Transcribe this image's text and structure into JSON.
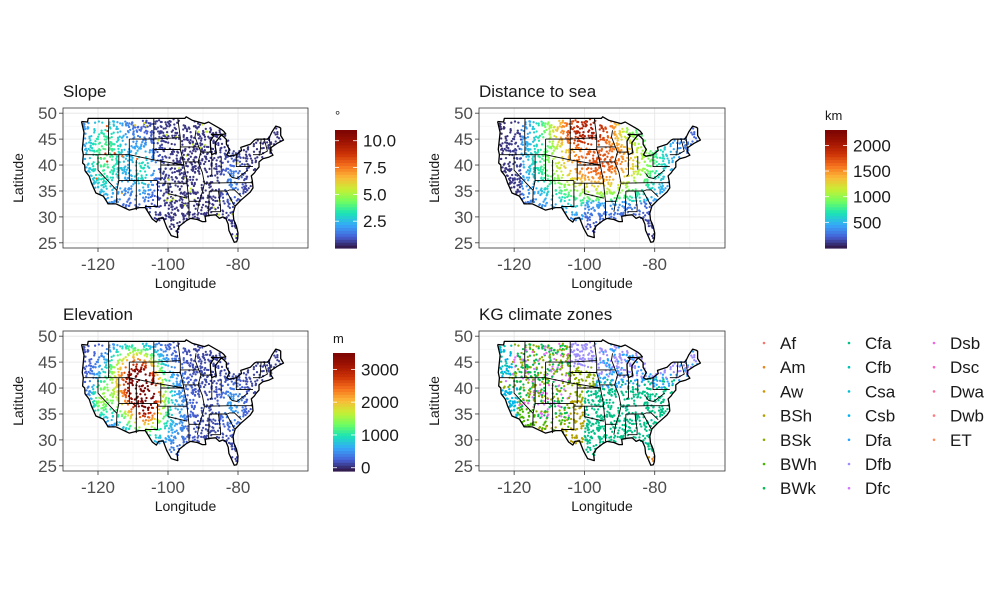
{
  "figure": {
    "axis_x_label": "Longitude",
    "axis_y_label": "Latitude"
  },
  "chart_data": [
    {
      "type": "scatter",
      "title": "Slope",
      "xlabel": "Longitude",
      "ylabel": "Latitude",
      "xlim": [
        -130,
        -60
      ],
      "ylim": [
        24,
        51
      ],
      "xticks": [
        -120,
        -100,
        -80
      ],
      "xtick_labels": [
        "-120",
        "-100",
        "-80"
      ],
      "yticks": [
        25,
        30,
        35,
        40,
        45,
        50
      ],
      "ytick_labels": [
        "25",
        "30",
        "35",
        "40",
        "45",
        "50"
      ],
      "grid": true,
      "legend": {
        "type": "colorbar",
        "title": "°",
        "range": [
          0,
          11
        ],
        "ticks": [
          2.5,
          5.0,
          7.5,
          10.0
        ],
        "tick_labels": [
          "2.5",
          "5.0",
          "7.5",
          "10.0"
        ],
        "colormap": "turbo",
        "placement": "right"
      },
      "pattern": "slope",
      "points": "dense random sample of sites across the contiguous United States; mostly low slope (<2°) with higher slopes along the western mountains and the Appalachians"
    },
    {
      "type": "scatter",
      "title": "Distance to sea",
      "xlabel": "Longitude",
      "ylabel": "Latitude",
      "xlim": [
        -130,
        -60
      ],
      "ylim": [
        24,
        51
      ],
      "xticks": [
        -120,
        -100,
        -80
      ],
      "xtick_labels": [
        "-120",
        "-100",
        "-80"
      ],
      "yticks": [
        25,
        30,
        35,
        40,
        45,
        50
      ],
      "ytick_labels": [
        "25",
        "30",
        "35",
        "40",
        "45",
        "50"
      ],
      "grid": true,
      "legend": {
        "type": "colorbar",
        "title": "km",
        "range": [
          0,
          2300
        ],
        "ticks": [
          500,
          1000,
          1500,
          2000
        ],
        "tick_labels": [
          "500",
          "1000",
          "1500",
          "2000"
        ],
        "colormap": "turbo",
        "placement": "right"
      },
      "pattern": "distance",
      "points": "distance from coast in km; maximum (~2200 km) over the northern Great Plains, low near all coasts"
    },
    {
      "type": "scatter",
      "title": "Elevation",
      "xlabel": "Longitude",
      "ylabel": "Latitude",
      "xlim": [
        -130,
        -60
      ],
      "ylim": [
        24,
        51
      ],
      "xticks": [
        -120,
        -100,
        -80
      ],
      "xtick_labels": [
        "-120",
        "-100",
        "-80"
      ],
      "yticks": [
        25,
        30,
        35,
        40,
        45,
        50
      ],
      "ytick_labels": [
        "25",
        "30",
        "35",
        "40",
        "45",
        "50"
      ],
      "grid": true,
      "legend": {
        "type": "colorbar",
        "title": "m",
        "range": [
          -100,
          3500
        ],
        "ticks": [
          0,
          1000,
          2000,
          3000
        ],
        "tick_labels": [
          "0",
          "1000",
          "2000",
          "3000"
        ],
        "colormap": "turbo",
        "placement": "right"
      },
      "pattern": "elevation",
      "points": "elevation in m; highest (~3000 m) over the Rocky Mountains (Colorado), low in the east"
    },
    {
      "type": "scatter",
      "title": "KG climate zones",
      "xlabel": "Longitude",
      "ylabel": "Latitude",
      "xlim": [
        -130,
        -60
      ],
      "ylim": [
        24,
        51
      ],
      "xticks": [
        -120,
        -100,
        -80
      ],
      "xtick_labels": [
        "-120",
        "-100",
        "-80"
      ],
      "yticks": [
        25,
        30,
        35,
        40,
        45,
        50
      ],
      "ytick_labels": [
        "25",
        "30",
        "35",
        "40",
        "45",
        "50"
      ],
      "grid": true,
      "legend": {
        "type": "categorical",
        "placement": "right",
        "items": [
          {
            "label": "Af",
            "color": "#f8766d"
          },
          {
            "label": "Am",
            "color": "#e7851e"
          },
          {
            "label": "Aw",
            "color": "#d09400"
          },
          {
            "label": "BSh",
            "color": "#b2a100"
          },
          {
            "label": "BSk",
            "color": "#89ac00"
          },
          {
            "label": "BWh",
            "color": "#45b500"
          },
          {
            "label": "BWk",
            "color": "#00bc51"
          },
          {
            "label": "Cfa",
            "color": "#00c087"
          },
          {
            "label": "Cfb",
            "color": "#00c0b2"
          },
          {
            "label": "Csa",
            "color": "#00bcd6"
          },
          {
            "label": "Csb",
            "color": "#00b3f2"
          },
          {
            "label": "Dfa",
            "color": "#29a3ff"
          },
          {
            "label": "Dfb",
            "color": "#9c8dff"
          },
          {
            "label": "Dfc",
            "color": "#d277ff"
          },
          {
            "label": "Dsb",
            "color": "#f166e8"
          },
          {
            "label": "Dsc",
            "color": "#ff61c7"
          },
          {
            "label": "Dwa",
            "color": "#ff6c9f"
          },
          {
            "label": "Dwb",
            "color": "#ff7b7f"
          },
          {
            "label": "ET",
            "color": "#ff8c61"
          }
        ]
      },
      "pattern": "kg",
      "points": "Köppen–Geiger zone per site; Cfa dominates the southeast, Dfa/Dfb the north-east, BSk/BWk the interior west"
    }
  ]
}
